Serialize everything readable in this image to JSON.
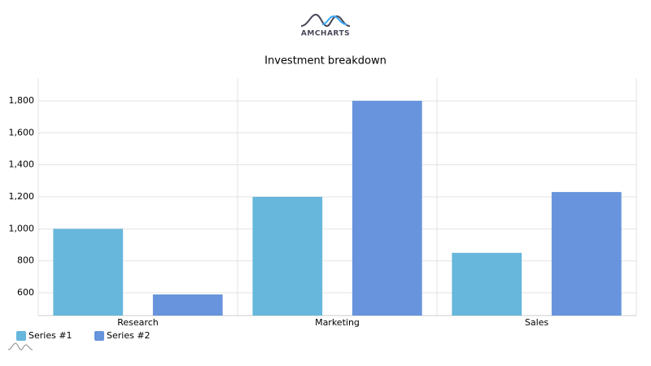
{
  "logo": "AMCHARTS",
  "chart_data": {
    "type": "bar",
    "title": "Investment breakdown",
    "categories": [
      "Research",
      "Marketing",
      "Sales"
    ],
    "series": [
      {
        "name": "Series #1",
        "color": "#67b7dc",
        "values": [
          1000,
          1200,
          850
        ]
      },
      {
        "name": "Series #2",
        "color": "#6794dc",
        "values": [
          590,
          1800,
          1230
        ]
      }
    ],
    "ylim": [
      458,
      1942
    ],
    "yticks": [
      {
        "value": 600,
        "label": "600"
      },
      {
        "value": 800,
        "label": "800"
      },
      {
        "value": 1000,
        "label": "1,000"
      },
      {
        "value": 1200,
        "label": "1,200"
      },
      {
        "value": 1400,
        "label": "1,400"
      },
      {
        "value": 1600,
        "label": "1,600"
      },
      {
        "value": 1800,
        "label": "1,800"
      }
    ],
    "grid": true,
    "legend": "bottom-left"
  }
}
